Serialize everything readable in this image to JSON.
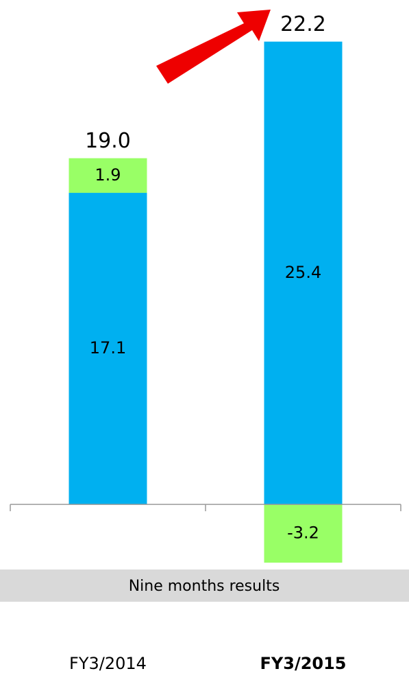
{
  "chart_data": {
    "type": "stacked_bar",
    "categories": [
      "FY3/2014",
      "FY3/2015"
    ],
    "series": [
      {
        "color": "#00b0f0",
        "values": [
          17.1,
          25.4
        ]
      },
      {
        "color": "#99ff66",
        "values": [
          1.9,
          -3.2
        ]
      }
    ],
    "totals": {
      "values": [
        19,
        22.2
      ],
      "value_labels": [
        "19.0",
        "22.2"
      ]
    },
    "band_label": "Nine months results",
    "negative_label_color": "#ff0000",
    "ylim": [
      -3.5,
      25.5
    ]
  }
}
